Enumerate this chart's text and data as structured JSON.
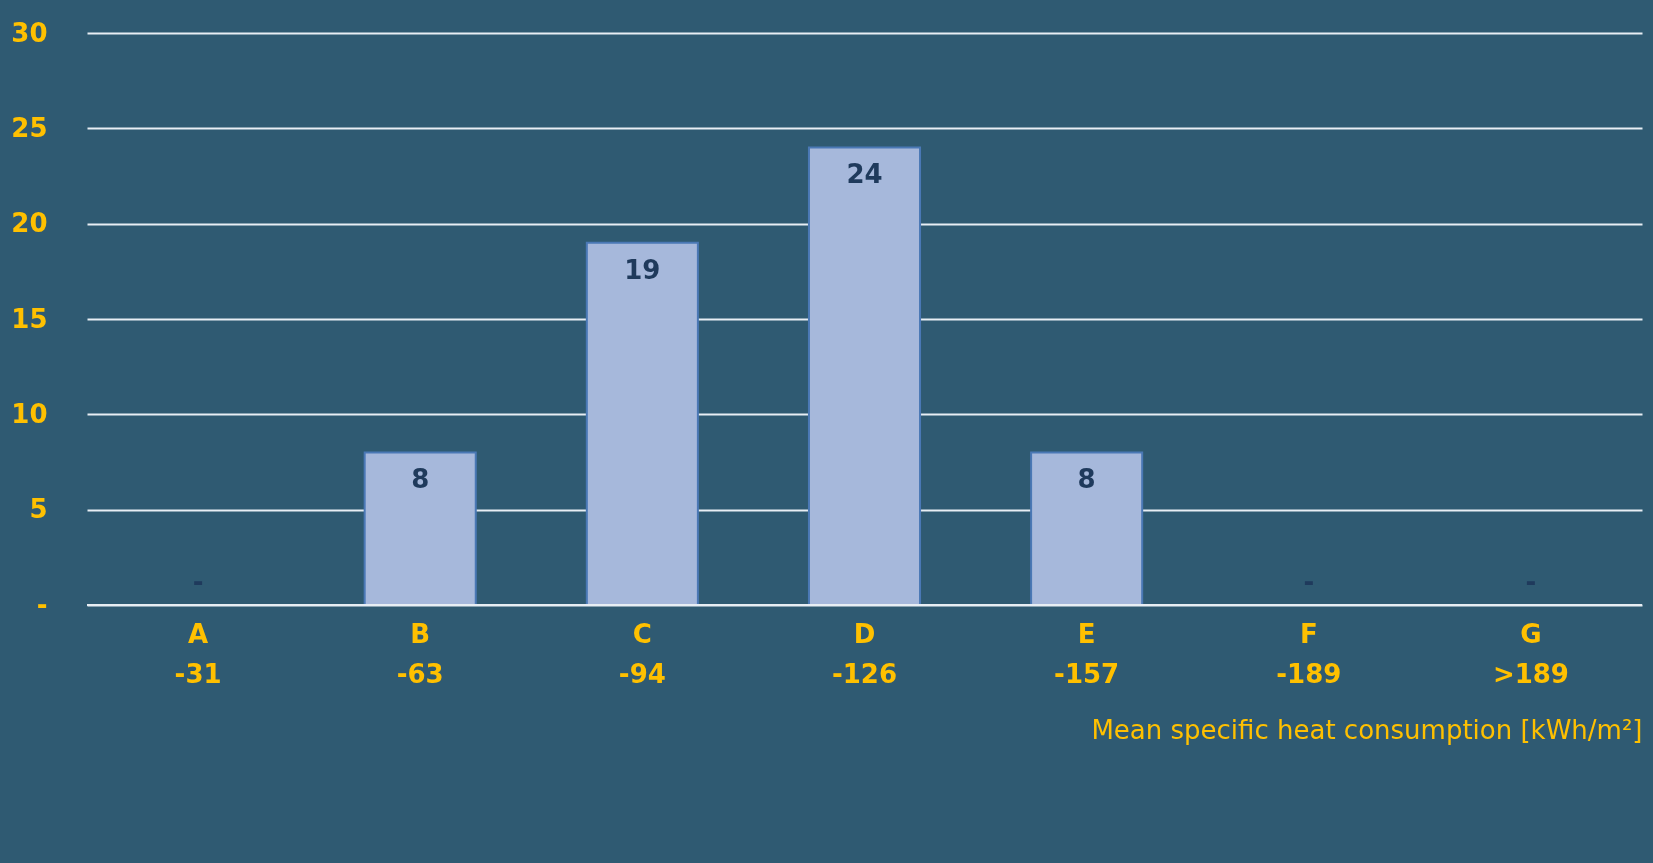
{
  "chart_data": {
    "type": "bar",
    "categories": [
      "A\n-31",
      "B\n-63",
      "C\n-94",
      "D\n-126",
      "E\n-157",
      "F\n-189",
      "G\n>189"
    ],
    "values": [
      0,
      8,
      19,
      24,
      8,
      0,
      0
    ],
    "value_labels": [
      "-",
      "8",
      "19",
      "24",
      "8",
      "-",
      "-"
    ],
    "color": "#a6b8db",
    "xlabel": "Mean specific heat consumption [kWh/m²]",
    "ylim": [
      0,
      30
    ],
    "yticks": [
      {
        "value": 0,
        "label": "-"
      },
      5,
      10,
      15,
      20,
      25,
      30
    ],
    "grid": "y"
  }
}
